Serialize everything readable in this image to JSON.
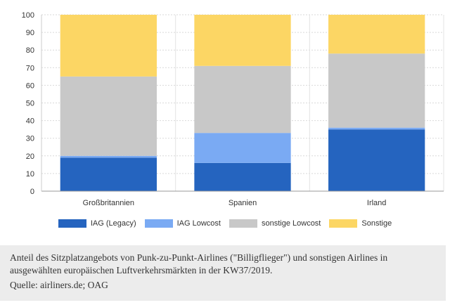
{
  "chart_data": {
    "type": "bar",
    "stacked": true,
    "categories": [
      "Großbritannien",
      "Spanien",
      "Irland"
    ],
    "series": [
      {
        "name": "IAG (Legacy)",
        "color": "#2564bf",
        "values": [
          19,
          16,
          35
        ]
      },
      {
        "name": "IAG Lowcost",
        "color": "#7aaaf3",
        "values": [
          1,
          17,
          1
        ]
      },
      {
        "name": "sonstige Lowcost",
        "color": "#c8c8c8",
        "values": [
          45,
          38,
          42
        ]
      },
      {
        "name": "Sonstige",
        "color": "#fcd664",
        "values": [
          35,
          29,
          22
        ]
      }
    ],
    "ylim": [
      0,
      100
    ],
    "yticks": [
      0,
      10,
      20,
      30,
      40,
      50,
      60,
      70,
      80,
      90,
      100
    ],
    "grid": true,
    "legend": "bottom"
  },
  "caption": {
    "text": "Anteil des Sitzplatzangebots von Punk-zu-Punkt-Airlines (\"Billigflieger\") und sonstigen Airlines in ausgewählten europäischen Luftverkehrsmärkten in der KW37/2019.",
    "source": "Quelle: airliners.de; OAG"
  }
}
